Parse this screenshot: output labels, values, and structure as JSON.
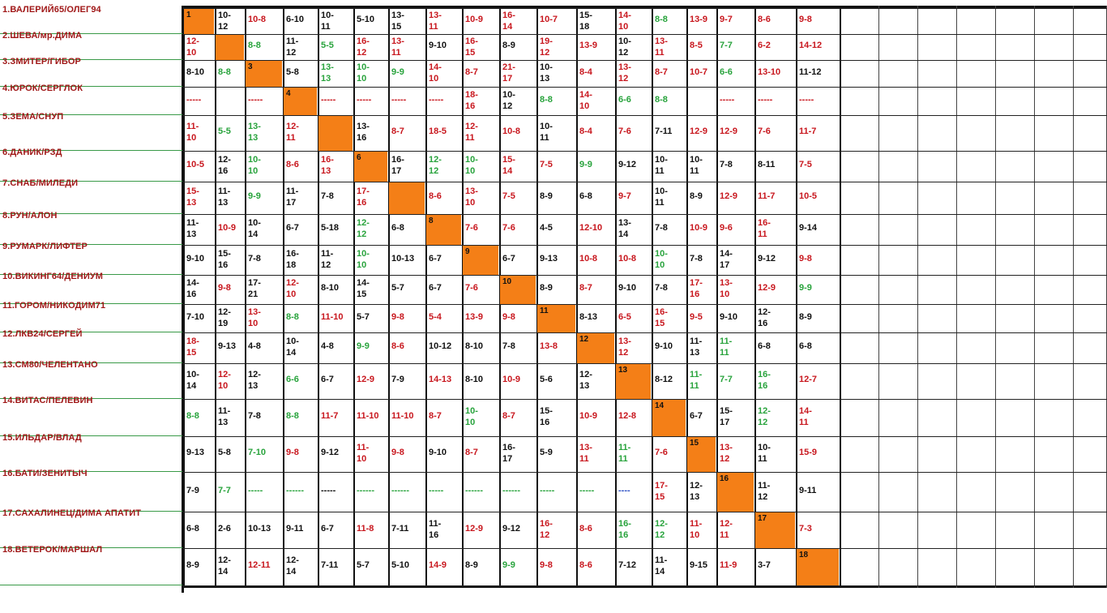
{
  "teams": [
    "1.ВАЛЕРИЙ65/ОЛЕГ94",
    "2.ШЕВА/мр.ДИМА",
    "3.ЗМИТЕР/ГИБОР",
    "4.ЮРОК/СЕРГЛОК",
    "5.ЗЕМА/СНУП",
    "6.ДАНИК/РЗД",
    "7.СНАБ/МИЛЕДИ",
    "8.РУН/АЛОН",
    "9.РУМАРК/ЛИФТЕР",
    "10.ВИКИНГ64/ДЕНИУМ",
    "11.ГОРОМ/НИКОДИМ71",
    "12.ЛКВ24/СЕРГЕЙ",
    "13.СМ80/ЧЕЛЕНТАНО",
    "14.ВИТАС/ПЕЛЕВИН",
    "15.ИЛЬДАР/ВЛАД",
    "16.БАТИ/ЗЕНИТЫЧ",
    "17.САХАЛИНЕЦ/ДИМА АПАТИТ",
    "18.ВЕТЕРОК/МАРШАЛ"
  ],
  "colors": {
    "diagonal": "#f47f17",
    "team_name": "#a01818",
    "black": "#111111",
    "red": "#c8171e",
    "green": "#28a33c",
    "blue": "#2b4fc4",
    "name_line": "#3a9a48"
  },
  "rows": [
    [
      {
        "v": "1",
        "c": "d"
      },
      {
        "v": "10-\n12",
        "c": "k"
      },
      {
        "v": "10-8",
        "c": "r"
      },
      {
        "v": "6-10",
        "c": "k"
      },
      {
        "v": "10-\n11",
        "c": "k"
      },
      {
        "v": "5-10",
        "c": "k"
      },
      {
        "v": "13-\n15",
        "c": "k"
      },
      {
        "v": "13-\n11",
        "c": "r"
      },
      {
        "v": "10-9",
        "c": "r"
      },
      {
        "v": "16-\n14",
        "c": "r"
      },
      {
        "v": "10-7",
        "c": "r"
      },
      {
        "v": "15-\n18",
        "c": "k"
      },
      {
        "v": "14-\n10",
        "c": "r"
      },
      {
        "v": "8-8",
        "c": "g"
      },
      {
        "v": "13-9",
        "c": "r"
      },
      {
        "v": "9-7",
        "c": "r"
      },
      {
        "v": "8-6",
        "c": "r"
      },
      {
        "v": "9-8",
        "c": "r"
      }
    ],
    [
      {
        "v": "12-\n10",
        "c": "r"
      },
      {
        "v": "",
        "c": "d"
      },
      {
        "v": "8-8",
        "c": "g"
      },
      {
        "v": "11-\n12",
        "c": "k"
      },
      {
        "v": "5-5",
        "c": "g"
      },
      {
        "v": "16-\n12",
        "c": "r"
      },
      {
        "v": "13-\n11",
        "c": "r"
      },
      {
        "v": "9-10",
        "c": "k"
      },
      {
        "v": "16-\n15",
        "c": "r"
      },
      {
        "v": "8-9",
        "c": "k"
      },
      {
        "v": "19-\n12",
        "c": "r"
      },
      {
        "v": "13-9",
        "c": "r"
      },
      {
        "v": "10-\n12",
        "c": "k"
      },
      {
        "v": "13-\n11",
        "c": "r"
      },
      {
        "v": "8-5",
        "c": "r"
      },
      {
        "v": "7-7",
        "c": "g"
      },
      {
        "v": "6-2",
        "c": "r"
      },
      {
        "v": "14-12",
        "c": "r"
      }
    ],
    [
      {
        "v": "8-10",
        "c": "k"
      },
      {
        "v": "8-8",
        "c": "g"
      },
      {
        "v": "3",
        "c": "d"
      },
      {
        "v": "5-8",
        "c": "k"
      },
      {
        "v": "13-\n13",
        "c": "g"
      },
      {
        "v": "10-\n10",
        "c": "g"
      },
      {
        "v": "9-9",
        "c": "g"
      },
      {
        "v": "14-\n10",
        "c": "r"
      },
      {
        "v": "8-7",
        "c": "r"
      },
      {
        "v": "21-\n17",
        "c": "r"
      },
      {
        "v": "10-\n13",
        "c": "k"
      },
      {
        "v": "8-4",
        "c": "r"
      },
      {
        "v": "13-\n12",
        "c": "r"
      },
      {
        "v": "8-7",
        "c": "r"
      },
      {
        "v": "10-7",
        "c": "r"
      },
      {
        "v": "6-6",
        "c": "g"
      },
      {
        "v": "13-10",
        "c": "r"
      },
      {
        "v": "11-12",
        "c": "k"
      }
    ],
    [
      {
        "v": "-----",
        "c": "r"
      },
      {
        "v": "",
        "c": "k"
      },
      {
        "v": "-----",
        "c": "r"
      },
      {
        "v": "4",
        "c": "d"
      },
      {
        "v": "-----",
        "c": "r"
      },
      {
        "v": "-----",
        "c": "r"
      },
      {
        "v": "-----",
        "c": "r"
      },
      {
        "v": "-----",
        "c": "r"
      },
      {
        "v": "18-\n16",
        "c": "r"
      },
      {
        "v": "10-\n12",
        "c": "k"
      },
      {
        "v": "8-8",
        "c": "g"
      },
      {
        "v": "14-\n10",
        "c": "r"
      },
      {
        "v": "6-6",
        "c": "g"
      },
      {
        "v": "8-8",
        "c": "g"
      },
      {
        "v": "",
        "c": "k"
      },
      {
        "v": "-----",
        "c": "r"
      },
      {
        "v": "-----",
        "c": "r"
      },
      {
        "v": "-----",
        "c": "r"
      }
    ],
    [
      {
        "v": "11-\n10",
        "c": "r"
      },
      {
        "v": "5-5",
        "c": "g"
      },
      {
        "v": "13-\n13",
        "c": "g"
      },
      {
        "v": "12-\n11",
        "c": "r"
      },
      {
        "v": "",
        "c": "d"
      },
      {
        "v": "13-\n16",
        "c": "k"
      },
      {
        "v": "8-7",
        "c": "r"
      },
      {
        "v": "18-5",
        "c": "r"
      },
      {
        "v": "12-\n11",
        "c": "r"
      },
      {
        "v": "10-8",
        "c": "r"
      },
      {
        "v": "10-\n11",
        "c": "k"
      },
      {
        "v": "8-4",
        "c": "r"
      },
      {
        "v": "7-6",
        "c": "r"
      },
      {
        "v": "7-11",
        "c": "k"
      },
      {
        "v": "12-9",
        "c": "r"
      },
      {
        "v": "12-9",
        "c": "r"
      },
      {
        "v": "7-6",
        "c": "r"
      },
      {
        "v": "11-7",
        "c": "r"
      }
    ],
    [
      {
        "v": "10-5",
        "c": "r"
      },
      {
        "v": "12-\n16",
        "c": "k"
      },
      {
        "v": "10-\n10",
        "c": "g"
      },
      {
        "v": "8-6",
        "c": "r"
      },
      {
        "v": "16-\n13",
        "c": "r"
      },
      {
        "v": "6",
        "c": "d"
      },
      {
        "v": "16-\n17",
        "c": "k"
      },
      {
        "v": "12-\n12",
        "c": "g"
      },
      {
        "v": "10-\n10",
        "c": "g"
      },
      {
        "v": "15-\n14",
        "c": "r"
      },
      {
        "v": "7-5",
        "c": "r"
      },
      {
        "v": "9-9",
        "c": "g"
      },
      {
        "v": "9-12",
        "c": "k"
      },
      {
        "v": "10-\n11",
        "c": "k"
      },
      {
        "v": "10-\n11",
        "c": "k"
      },
      {
        "v": "7-8",
        "c": "k"
      },
      {
        "v": "8-11",
        "c": "k"
      },
      {
        "v": "7-5",
        "c": "r"
      }
    ],
    [
      {
        "v": "15-\n13",
        "c": "r"
      },
      {
        "v": "11-\n13",
        "c": "k"
      },
      {
        "v": "9-9",
        "c": "g"
      },
      {
        "v": "11-\n17",
        "c": "k"
      },
      {
        "v": "7-8",
        "c": "k"
      },
      {
        "v": "17-\n16",
        "c": "r"
      },
      {
        "v": "",
        "c": "d"
      },
      {
        "v": "8-6",
        "c": "r"
      },
      {
        "v": "13-\n10",
        "c": "r"
      },
      {
        "v": "7-5",
        "c": "r"
      },
      {
        "v": "8-9",
        "c": "k"
      },
      {
        "v": "6-8",
        "c": "k"
      },
      {
        "v": "9-7",
        "c": "r"
      },
      {
        "v": "10-\n11",
        "c": "k"
      },
      {
        "v": "8-9",
        "c": "k"
      },
      {
        "v": "12-9",
        "c": "r"
      },
      {
        "v": "11-7",
        "c": "r"
      },
      {
        "v": "10-5",
        "c": "r"
      }
    ],
    [
      {
        "v": "11-\n13",
        "c": "k"
      },
      {
        "v": "10-9",
        "c": "r"
      },
      {
        "v": "10-\n14",
        "c": "k"
      },
      {
        "v": "6-7",
        "c": "k"
      },
      {
        "v": "5-18",
        "c": "k"
      },
      {
        "v": "12-\n12",
        "c": "g"
      },
      {
        "v": "6-8",
        "c": "k"
      },
      {
        "v": "8",
        "c": "d"
      },
      {
        "v": "7-6",
        "c": "r"
      },
      {
        "v": "7-6",
        "c": "r"
      },
      {
        "v": "4-5",
        "c": "k"
      },
      {
        "v": "12-10",
        "c": "r"
      },
      {
        "v": "13-\n14",
        "c": "k"
      },
      {
        "v": "7-8",
        "c": "k"
      },
      {
        "v": "10-9",
        "c": "r"
      },
      {
        "v": "9-6",
        "c": "r"
      },
      {
        "v": "16-\n11",
        "c": "r"
      },
      {
        "v": "9-14",
        "c": "k"
      }
    ],
    [
      {
        "v": "9-10",
        "c": "k"
      },
      {
        "v": "15-\n16",
        "c": "k"
      },
      {
        "v": "7-8",
        "c": "k"
      },
      {
        "v": "16-\n18",
        "c": "k"
      },
      {
        "v": "11-\n12",
        "c": "k"
      },
      {
        "v": "10-\n10",
        "c": "g"
      },
      {
        "v": "10-13",
        "c": "k"
      },
      {
        "v": "6-7",
        "c": "k"
      },
      {
        "v": "9",
        "c": "d"
      },
      {
        "v": "6-7",
        "c": "k"
      },
      {
        "v": "9-13",
        "c": "k"
      },
      {
        "v": "10-8",
        "c": "r"
      },
      {
        "v": "10-8",
        "c": "r"
      },
      {
        "v": "10-\n10",
        "c": "g"
      },
      {
        "v": "7-8",
        "c": "k"
      },
      {
        "v": "14-\n17",
        "c": "k"
      },
      {
        "v": "9-12",
        "c": "k"
      },
      {
        "v": "9-8",
        "c": "r"
      }
    ],
    [
      {
        "v": "14-\n16",
        "c": "k"
      },
      {
        "v": "9-8",
        "c": "r"
      },
      {
        "v": "17-\n21",
        "c": "k"
      },
      {
        "v": "12-\n10",
        "c": "r"
      },
      {
        "v": "8-10",
        "c": "k"
      },
      {
        "v": "14-\n15",
        "c": "k"
      },
      {
        "v": "5-7",
        "c": "k"
      },
      {
        "v": "6-7",
        "c": "k"
      },
      {
        "v": "7-6",
        "c": "r"
      },
      {
        "v": "10",
        "c": "d"
      },
      {
        "v": "8-9",
        "c": "k"
      },
      {
        "v": "8-7",
        "c": "r"
      },
      {
        "v": "9-10",
        "c": "k"
      },
      {
        "v": "7-8",
        "c": "k"
      },
      {
        "v": "17-\n16",
        "c": "r"
      },
      {
        "v": "13-\n10",
        "c": "r"
      },
      {
        "v": "12-9",
        "c": "r"
      },
      {
        "v": "9-9",
        "c": "g"
      }
    ],
    [
      {
        "v": "7-10",
        "c": "k"
      },
      {
        "v": "12-\n19",
        "c": "k"
      },
      {
        "v": "13-\n10",
        "c": "r"
      },
      {
        "v": "8-8",
        "c": "g"
      },
      {
        "v": "11-10",
        "c": "r"
      },
      {
        "v": "5-7",
        "c": "k"
      },
      {
        "v": "9-8",
        "c": "r"
      },
      {
        "v": "5-4",
        "c": "r"
      },
      {
        "v": "13-9",
        "c": "r"
      },
      {
        "v": "9-8",
        "c": "r"
      },
      {
        "v": "11",
        "c": "d"
      },
      {
        "v": "8-13",
        "c": "k"
      },
      {
        "v": "6-5",
        "c": "r"
      },
      {
        "v": "16-\n15",
        "c": "r"
      },
      {
        "v": "9-5",
        "c": "r"
      },
      {
        "v": "9-10",
        "c": "k"
      },
      {
        "v": "12-\n16",
        "c": "k"
      },
      {
        "v": "8-9",
        "c": "k"
      }
    ],
    [
      {
        "v": "18-\n15",
        "c": "r"
      },
      {
        "v": "9-13",
        "c": "k"
      },
      {
        "v": "4-8",
        "c": "k"
      },
      {
        "v": "10-\n14",
        "c": "k"
      },
      {
        "v": "4-8",
        "c": "k"
      },
      {
        "v": "9-9",
        "c": "g"
      },
      {
        "v": "8-6",
        "c": "r"
      },
      {
        "v": "10-12",
        "c": "k"
      },
      {
        "v": "8-10",
        "c": "k"
      },
      {
        "v": "7-8",
        "c": "k"
      },
      {
        "v": "13-8",
        "c": "r"
      },
      {
        "v": "12",
        "c": "d"
      },
      {
        "v": "13-\n12",
        "c": "r"
      },
      {
        "v": "9-10",
        "c": "k"
      },
      {
        "v": "11-\n13",
        "c": "k"
      },
      {
        "v": "11-\n11",
        "c": "g"
      },
      {
        "v": "6-8",
        "c": "k"
      },
      {
        "v": "6-8",
        "c": "k"
      }
    ],
    [
      {
        "v": "10-\n14",
        "c": "k"
      },
      {
        "v": "12-\n10",
        "c": "r"
      },
      {
        "v": "12-\n13",
        "c": "k"
      },
      {
        "v": "6-6",
        "c": "g"
      },
      {
        "v": "6-7",
        "c": "k"
      },
      {
        "v": "12-9",
        "c": "r"
      },
      {
        "v": "7-9",
        "c": "k"
      },
      {
        "v": "14-13",
        "c": "r"
      },
      {
        "v": "8-10",
        "c": "k"
      },
      {
        "v": "10-9",
        "c": "r"
      },
      {
        "v": "5-6",
        "c": "k"
      },
      {
        "v": "12-\n13",
        "c": "k"
      },
      {
        "v": "13",
        "c": "d"
      },
      {
        "v": "8-12",
        "c": "k"
      },
      {
        "v": "11-\n11",
        "c": "g"
      },
      {
        "v": "7-7",
        "c": "g"
      },
      {
        "v": "16-\n16",
        "c": "g"
      },
      {
        "v": "12-7",
        "c": "r"
      }
    ],
    [
      {
        "v": "8-8",
        "c": "g"
      },
      {
        "v": "11-\n13",
        "c": "k"
      },
      {
        "v": "7-8",
        "c": "k"
      },
      {
        "v": "8-8",
        "c": "g"
      },
      {
        "v": "11-7",
        "c": "r"
      },
      {
        "v": "11-10",
        "c": "r"
      },
      {
        "v": "11-10",
        "c": "r"
      },
      {
        "v": "8-7",
        "c": "r"
      },
      {
        "v": "10-\n10",
        "c": "g"
      },
      {
        "v": "8-7",
        "c": "r"
      },
      {
        "v": "15-\n16",
        "c": "k"
      },
      {
        "v": "10-9",
        "c": "r"
      },
      {
        "v": "12-8",
        "c": "r"
      },
      {
        "v": "14",
        "c": "d"
      },
      {
        "v": "6-7",
        "c": "k"
      },
      {
        "v": "15-\n17",
        "c": "k"
      },
      {
        "v": "12-\n12",
        "c": "g"
      },
      {
        "v": "14-\n11",
        "c": "r"
      }
    ],
    [
      {
        "v": "9-13",
        "c": "k"
      },
      {
        "v": "5-8",
        "c": "k"
      },
      {
        "v": "7-10",
        "c": "g"
      },
      {
        "v": "9-8",
        "c": "r"
      },
      {
        "v": "9-12",
        "c": "k"
      },
      {
        "v": "11-\n10",
        "c": "r"
      },
      {
        "v": "9-8",
        "c": "r"
      },
      {
        "v": "9-10",
        "c": "k"
      },
      {
        "v": "8-7",
        "c": "r"
      },
      {
        "v": "16-\n17",
        "c": "k"
      },
      {
        "v": "5-9",
        "c": "k"
      },
      {
        "v": "13-\n11",
        "c": "r"
      },
      {
        "v": "11-\n11",
        "c": "g"
      },
      {
        "v": "7-6",
        "c": "r"
      },
      {
        "v": "15",
        "c": "d"
      },
      {
        "v": "13-\n12",
        "c": "r"
      },
      {
        "v": "10-\n11",
        "c": "k"
      },
      {
        "v": "15-9",
        "c": "r"
      }
    ],
    [
      {
        "v": "7-9",
        "c": "k"
      },
      {
        "v": "7-7",
        "c": "g"
      },
      {
        "v": "-----",
        "c": "g"
      },
      {
        "v": "------",
        "c": "g"
      },
      {
        "v": "-----",
        "c": "k"
      },
      {
        "v": "------",
        "c": "g"
      },
      {
        "v": "------",
        "c": "g"
      },
      {
        "v": "-----",
        "c": "g"
      },
      {
        "v": "------",
        "c": "g"
      },
      {
        "v": "------",
        "c": "g"
      },
      {
        "v": "-----",
        "c": "g"
      },
      {
        "v": "-----",
        "c": "g"
      },
      {
        "v": "----",
        "c": "b"
      },
      {
        "v": "17-\n15",
        "c": "r"
      },
      {
        "v": "12-\n13",
        "c": "k"
      },
      {
        "v": "16",
        "c": "d"
      },
      {
        "v": "11-\n12",
        "c": "k"
      },
      {
        "v": "9-11",
        "c": "k"
      }
    ],
    [
      {
        "v": "6-8",
        "c": "k"
      },
      {
        "v": "2-6",
        "c": "k"
      },
      {
        "v": "10-13",
        "c": "k"
      },
      {
        "v": "9-11",
        "c": "k"
      },
      {
        "v": "6-7",
        "c": "k"
      },
      {
        "v": "11-8",
        "c": "r"
      },
      {
        "v": "7-11",
        "c": "k"
      },
      {
        "v": "11-\n16",
        "c": "k"
      },
      {
        "v": "12-9",
        "c": "r"
      },
      {
        "v": "9-12",
        "c": "k"
      },
      {
        "v": "16-\n12",
        "c": "r"
      },
      {
        "v": "8-6",
        "c": "r"
      },
      {
        "v": "16-\n16",
        "c": "g"
      },
      {
        "v": "12-\n12",
        "c": "g"
      },
      {
        "v": "11-\n10",
        "c": "r"
      },
      {
        "v": "12-\n11",
        "c": "r"
      },
      {
        "v": "17",
        "c": "d"
      },
      {
        "v": "7-3",
        "c": "r"
      }
    ],
    [
      {
        "v": "8-9",
        "c": "k"
      },
      {
        "v": "12-\n14",
        "c": "k"
      },
      {
        "v": "12-11",
        "c": "r"
      },
      {
        "v": "12-\n14",
        "c": "k"
      },
      {
        "v": "7-11",
        "c": "k"
      },
      {
        "v": "5-7",
        "c": "k"
      },
      {
        "v": "5-10",
        "c": "k"
      },
      {
        "v": "14-9",
        "c": "r"
      },
      {
        "v": "8-9",
        "c": "k"
      },
      {
        "v": "9-9",
        "c": "g"
      },
      {
        "v": "9-8",
        "c": "r"
      },
      {
        "v": "8-6",
        "c": "r"
      },
      {
        "v": "7-12",
        "c": "k"
      },
      {
        "v": "11-\n14",
        "c": "k"
      },
      {
        "v": "9-15",
        "c": "k"
      },
      {
        "v": "11-9",
        "c": "r"
      },
      {
        "v": "3-7",
        "c": "k"
      },
      {
        "v": "18",
        "c": "d"
      }
    ]
  ]
}
